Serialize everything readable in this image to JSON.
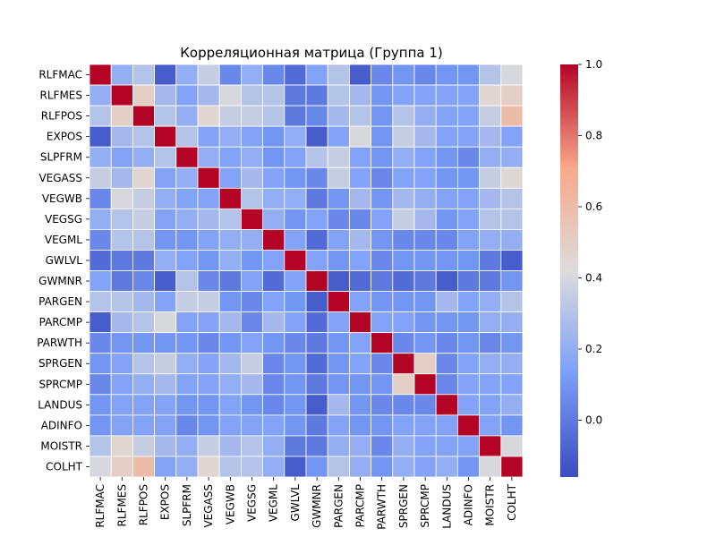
{
  "chart_data": {
    "type": "heatmap",
    "title": "Корреляционная матрица (Группа 1)",
    "labels": [
      "RLFMAC",
      "RLFMES",
      "RLFPOS",
      "EXPOS",
      "SLPFRM",
      "VEGASS",
      "VEGWB",
      "VEGSG",
      "VEGML",
      "GWLVL",
      "GWMNR",
      "PARGEN",
      "PARCMP",
      "PARWTH",
      "SPRGEN",
      "SPRCMP",
      "LANDUS",
      "ADINFO",
      "MOISTR",
      "COLHT"
    ],
    "matrix": [
      [
        1.0,
        0.2,
        0.3,
        -0.1,
        0.2,
        0.35,
        0.05,
        0.2,
        0.05,
        -0.05,
        0.15,
        0.3,
        -0.1,
        0.05,
        0.1,
        0.05,
        0.1,
        0.1,
        0.3,
        0.4
      ],
      [
        0.2,
        1.0,
        0.5,
        0.25,
        0.15,
        0.25,
        0.4,
        0.3,
        0.3,
        0.0,
        0.0,
        0.3,
        0.25,
        0.1,
        0.15,
        0.15,
        0.15,
        0.15,
        0.45,
        0.5
      ],
      [
        0.3,
        0.5,
        1.0,
        0.3,
        0.2,
        0.45,
        0.35,
        0.35,
        0.3,
        0.0,
        0.05,
        0.25,
        0.3,
        0.1,
        0.3,
        0.2,
        0.15,
        0.15,
        0.35,
        0.6
      ],
      [
        -0.1,
        0.25,
        0.3,
        1.0,
        0.3,
        0.15,
        0.2,
        0.15,
        0.1,
        0.2,
        -0.1,
        0.15,
        0.4,
        0.1,
        0.35,
        0.25,
        0.15,
        0.15,
        0.25,
        0.15
      ],
      [
        0.2,
        0.15,
        0.2,
        0.3,
        1.0,
        0.2,
        0.15,
        0.2,
        0.1,
        0.15,
        0.3,
        0.35,
        0.15,
        0.1,
        0.2,
        0.15,
        0.1,
        0.05,
        0.2,
        0.2
      ],
      [
        0.35,
        0.25,
        0.45,
        0.15,
        0.2,
        1.0,
        0.15,
        0.25,
        0.15,
        0.1,
        0.05,
        0.35,
        0.15,
        0.05,
        0.15,
        0.15,
        0.1,
        0.1,
        0.35,
        0.45
      ],
      [
        0.05,
        0.4,
        0.35,
        0.2,
        0.15,
        0.15,
        1.0,
        0.3,
        0.2,
        0.2,
        0.0,
        0.1,
        0.25,
        0.1,
        0.25,
        0.2,
        0.15,
        0.15,
        0.25,
        0.3
      ],
      [
        0.2,
        0.3,
        0.35,
        0.15,
        0.2,
        0.25,
        0.3,
        1.0,
        0.2,
        0.1,
        0.15,
        0.05,
        0.05,
        0.15,
        0.35,
        0.25,
        0.1,
        0.15,
        0.3,
        0.3
      ],
      [
        0.05,
        0.3,
        0.3,
        0.1,
        0.1,
        0.15,
        0.2,
        0.2,
        1.0,
        0.15,
        -0.05,
        0.15,
        0.25,
        0.1,
        0.05,
        0.05,
        0.05,
        0.15,
        0.2,
        0.2
      ],
      [
        -0.05,
        0.0,
        0.0,
        0.2,
        0.15,
        0.1,
        0.2,
        0.1,
        0.15,
        1.0,
        0.15,
        0.1,
        0.15,
        0.05,
        0.1,
        0.1,
        0.1,
        0.1,
        0.0,
        -0.1
      ],
      [
        0.15,
        0.0,
        0.05,
        -0.1,
        0.3,
        0.05,
        0.0,
        0.15,
        -0.05,
        0.15,
        1.0,
        -0.1,
        -0.05,
        0.0,
        -0.05,
        0.0,
        -0.1,
        0.0,
        0.0,
        0.1
      ],
      [
        0.3,
        0.3,
        0.25,
        0.15,
        0.35,
        0.35,
        0.1,
        0.05,
        0.15,
        0.1,
        -0.1,
        1.0,
        0.15,
        0.1,
        0.1,
        0.1,
        0.25,
        0.15,
        0.2,
        0.3
      ],
      [
        -0.1,
        0.25,
        0.3,
        0.4,
        0.15,
        0.15,
        0.25,
        0.05,
        0.25,
        0.15,
        -0.05,
        0.15,
        1.0,
        0.15,
        0.15,
        0.1,
        0.1,
        0.1,
        0.2,
        0.2
      ],
      [
        0.05,
        0.1,
        0.1,
        0.1,
        0.1,
        0.05,
        0.1,
        0.15,
        0.1,
        0.05,
        0.0,
        0.1,
        0.15,
        1.0,
        0.05,
        0.1,
        0.05,
        0.1,
        0.05,
        0.1
      ],
      [
        0.1,
        0.15,
        0.3,
        0.35,
        0.2,
        0.15,
        0.25,
        0.35,
        0.05,
        0.1,
        -0.05,
        0.1,
        0.15,
        0.05,
        1.0,
        0.5,
        0.05,
        0.15,
        0.2,
        0.2
      ],
      [
        0.05,
        0.15,
        0.2,
        0.25,
        0.15,
        0.15,
        0.2,
        0.25,
        0.05,
        0.1,
        0.0,
        0.1,
        0.1,
        0.1,
        0.5,
        1.0,
        0.05,
        0.15,
        0.15,
        0.15
      ],
      [
        0.1,
        0.15,
        0.15,
        0.15,
        0.1,
        0.1,
        0.15,
        0.1,
        0.05,
        0.1,
        -0.1,
        0.25,
        0.1,
        0.05,
        0.05,
        0.05,
        1.0,
        0.15,
        0.15,
        0.2
      ],
      [
        0.1,
        0.15,
        0.15,
        0.15,
        0.05,
        0.1,
        0.15,
        0.15,
        0.15,
        0.1,
        0.0,
        0.15,
        0.1,
        0.1,
        0.15,
        0.15,
        0.15,
        1.0,
        0.15,
        0.1
      ],
      [
        0.3,
        0.45,
        0.35,
        0.25,
        0.2,
        0.35,
        0.25,
        0.3,
        0.2,
        0.0,
        0.0,
        0.2,
        0.2,
        0.05,
        0.2,
        0.15,
        0.15,
        0.15,
        1.0,
        0.4
      ],
      [
        0.4,
        0.5,
        0.6,
        0.15,
        0.2,
        0.45,
        0.3,
        0.3,
        0.2,
        -0.1,
        0.1,
        0.3,
        0.2,
        0.1,
        0.2,
        0.15,
        0.2,
        0.1,
        0.4,
        1.0
      ]
    ],
    "colorbar": {
      "ticks": [
        1.0,
        0.8,
        0.6,
        0.4,
        0.2,
        0.0
      ],
      "vmin": -0.16,
      "vmax": 1.0
    },
    "colormap": "coolwarm",
    "grid": true
  }
}
